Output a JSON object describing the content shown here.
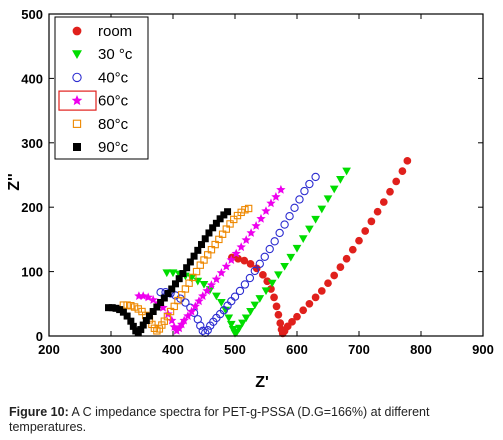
{
  "chart_data": {
    "type": "scatter",
    "xlabel": "Z'",
    "ylabel": "Z''",
    "xlim": [
      200,
      900
    ],
    "ylim": [
      0,
      500
    ],
    "xticks": [
      200,
      300,
      400,
      500,
      600,
      700,
      800,
      900
    ],
    "yticks": [
      0,
      100,
      200,
      300,
      400,
      500
    ],
    "legend_position": "top-left",
    "highlighted_legend_entry": "60°c",
    "highlight_color": "#e0201c",
    "series": [
      {
        "name": "room",
        "marker": "circle-filled",
        "color": "#e0201c",
        "x": [
          495,
          505,
          515,
          525,
          535,
          545,
          552,
          558,
          563,
          567,
          570,
          573,
          575,
          577,
          580,
          585,
          592,
          600,
          610,
          620,
          630,
          640,
          650,
          660,
          670,
          680,
          690,
          700,
          710,
          720,
          730,
          740,
          750,
          760,
          770,
          778
        ],
        "y": [
          122,
          120,
          117,
          112,
          105,
          95,
          85,
          73,
          60,
          46,
          33,
          20,
          10,
          4,
          8,
          15,
          22,
          30,
          40,
          50,
          60,
          70,
          82,
          94,
          107,
          120,
          134,
          148,
          163,
          178,
          193,
          208,
          224,
          240,
          256,
          272
        ]
      },
      {
        "name": "30 °c",
        "marker": "triangle-down-filled",
        "color": "#00dd00",
        "x": [
          390,
          400,
          410,
          420,
          430,
          440,
          450,
          460,
          470,
          478,
          485,
          490,
          494,
          497,
          500,
          503,
          507,
          512,
          518,
          525,
          532,
          540,
          550,
          560,
          570,
          580,
          590,
          600,
          610,
          620,
          630,
          640,
          650,
          660,
          670,
          680
        ],
        "y": [
          98,
          98,
          96,
          93,
          90,
          85,
          80,
          72,
          62,
          52,
          40,
          28,
          18,
          10,
          4,
          6,
          12,
          20,
          28,
          38,
          48,
          58,
          70,
          82,
          95,
          108,
          122,
          136,
          151,
          166,
          181,
          197,
          213,
          228,
          243,
          256
        ]
      },
      {
        "name": "40°c",
        "marker": "circle-open",
        "color": "#2c2cd0",
        "x": [
          380,
          388,
          396,
          404,
          412,
          420,
          428,
          434,
          440,
          444,
          448,
          452,
          456,
          460,
          465,
          470,
          476,
          482,
          488,
          494,
          500,
          508,
          516,
          524,
          532,
          540,
          548,
          556,
          564,
          572,
          580,
          588,
          596,
          604,
          612,
          620,
          630
        ],
        "y": [
          68,
          68,
          66,
          63,
          58,
          52,
          44,
          36,
          26,
          16,
          8,
          5,
          9,
          16,
          22,
          28,
          34,
          40,
          47,
          54,
          61,
          70,
          80,
          90,
          101,
          112,
          123,
          135,
          147,
          160,
          173,
          186,
          199,
          212,
          225,
          236,
          247
        ]
      },
      {
        "name": "60°c",
        "marker": "star",
        "color": "#ee00ee",
        "x": [
          345,
          352,
          360,
          368,
          376,
          384,
          392,
          398,
          402,
          406,
          410,
          414,
          418,
          424,
          430,
          436,
          442,
          448,
          455,
          462,
          470,
          478,
          486,
          494,
          502,
          510,
          518,
          526,
          534,
          542,
          550,
          558,
          566,
          574
        ],
        "y": [
          62,
          62,
          60,
          56,
          51,
          44,
          34,
          24,
          14,
          8,
          12,
          18,
          24,
          31,
          38,
          46,
          54,
          62,
          70,
          79,
          88,
          98,
          108,
          118,
          128,
          138,
          149,
          160,
          171,
          182,
          194,
          206,
          216,
          227
        ]
      },
      {
        "name": "80°c",
        "marker": "square-open",
        "color": "#ee8800",
        "x": [
          320,
          326,
          332,
          338,
          344,
          350,
          356,
          362,
          366,
          370,
          374,
          378,
          382,
          386,
          391,
          396,
          402,
          408,
          414,
          420,
          426,
          432,
          438,
          444,
          450,
          456,
          462,
          468,
          474,
          480,
          486,
          492,
          498,
          504,
          510,
          516,
          522
        ],
        "y": [
          48,
          48,
          47,
          45,
          42,
          38,
          32,
          25,
          18,
          12,
          8,
          11,
          17,
          23,
          30,
          38,
          46,
          55,
          64,
          73,
          82,
          91,
          100,
          110,
          118,
          126,
          134,
          142,
          150,
          158,
          166,
          174,
          181,
          187,
          192,
          196,
          198
        ]
      },
      {
        "name": "90°c",
        "marker": "square-filled",
        "color": "#000000",
        "x": [
          296,
          302,
          308,
          314,
          320,
          326,
          332,
          336,
          340,
          344,
          348,
          352,
          357,
          362,
          368,
          374,
          380,
          386,
          392,
          398,
          404,
          410,
          416,
          422,
          428,
          434,
          440,
          446,
          452,
          458,
          464,
          470,
          476,
          482,
          488
        ],
        "y": [
          44,
          44,
          43,
          41,
          37,
          31,
          23,
          15,
          8,
          5,
          10,
          17,
          24,
          31,
          38,
          45,
          52,
          59,
          66,
          73,
          81,
          89,
          97,
          106,
          115,
          124,
          133,
          142,
          151,
          160,
          168,
          175,
          182,
          188,
          193
        ]
      }
    ]
  },
  "caption": {
    "label": "Figure 10:",
    "text": " A C impedance spectra for PET-g-PSSA (D.G=166%) at different temperatures."
  }
}
